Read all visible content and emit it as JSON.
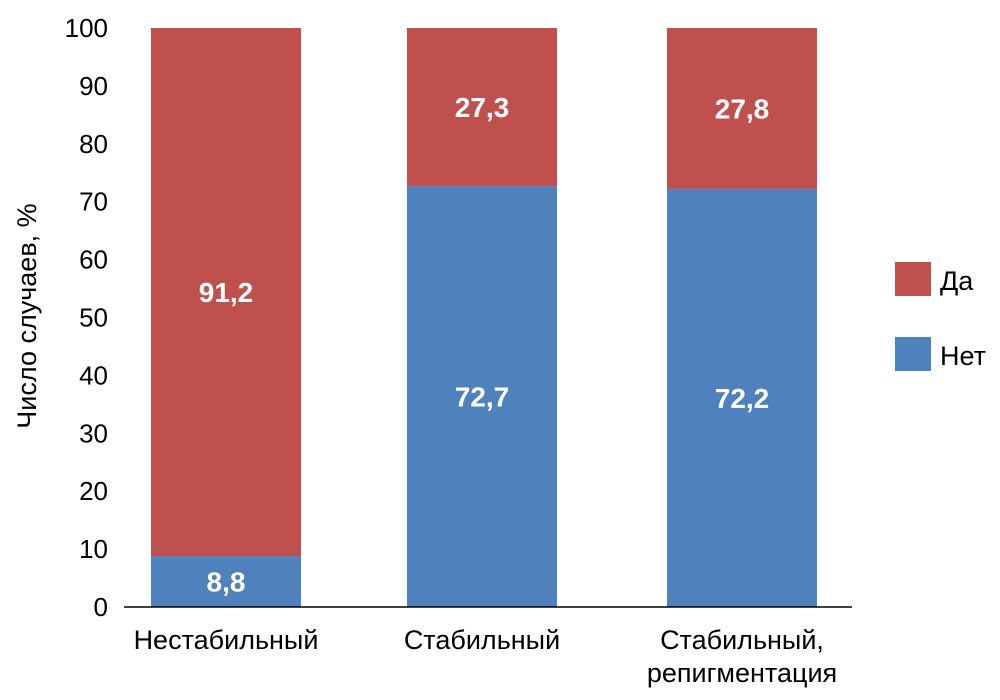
{
  "chart_data": {
    "type": "bar",
    "stacked": true,
    "categories": [
      [
        "Нестабильный"
      ],
      [
        "Стабильный"
      ],
      [
        "Стабильный,",
        "репигментация"
      ]
    ],
    "series": [
      {
        "name": "Нет",
        "color": "#4f81bd",
        "values": [
          8.8,
          72.7,
          72.2
        ],
        "labels": [
          "8,8",
          "72,7",
          "72,2"
        ]
      },
      {
        "name": "Да",
        "color": "#c0504d",
        "values": [
          91.2,
          27.3,
          27.8
        ],
        "labels": [
          "91,2",
          "27,3",
          "27,8"
        ]
      }
    ],
    "legend_order": [
      "Да",
      "Нет"
    ],
    "ylabel": "Число случаев, %",
    "ylim": [
      0,
      100
    ],
    "yticks": [
      0,
      10,
      20,
      30,
      40,
      50,
      60,
      70,
      80,
      90,
      100
    ],
    "grid": false,
    "legend": "right"
  }
}
